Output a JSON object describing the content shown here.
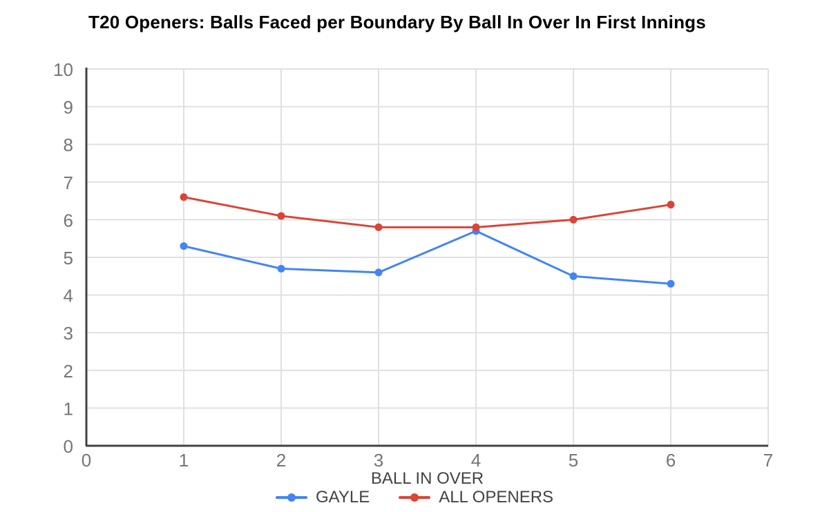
{
  "title": "T20 Openers: Balls Faced per Boundary By Ball In Over In First Innings",
  "chart_data": {
    "type": "line",
    "x": [
      1,
      2,
      3,
      4,
      5,
      6
    ],
    "series": [
      {
        "name": "GAYLE",
        "color": "#4285f4",
        "values": [
          5.3,
          4.7,
          4.6,
          5.7,
          4.5,
          4.3
        ]
      },
      {
        "name": "ALL OPENERS",
        "color": "#db4437",
        "values": [
          6.6,
          6.1,
          5.8,
          5.8,
          6.0,
          6.4
        ]
      }
    ],
    "xlabel": "BALL IN OVER",
    "ylabel": "",
    "xlim": [
      0,
      7
    ],
    "ylim": [
      0,
      10
    ],
    "x_ticks": [
      0,
      1,
      2,
      3,
      4,
      5,
      6,
      7
    ],
    "y_ticks": [
      0,
      1,
      2,
      3,
      4,
      5,
      6,
      7,
      8,
      9,
      10
    ],
    "grid": true,
    "legend_position": "bottom"
  },
  "style": {
    "gridline_color": "#e0e0e0",
    "axis_color": "#424242",
    "tick_label_color": "#757575",
    "background": "#ffffff"
  }
}
